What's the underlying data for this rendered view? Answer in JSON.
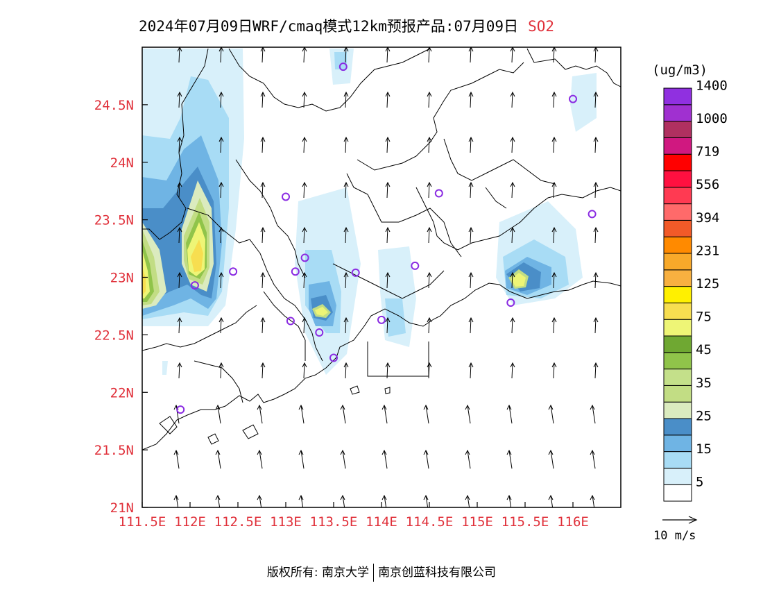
{
  "title": {
    "main": "2024年07月09日WRF/cmaq模式12km预报产品:07月09日",
    "pollutant": "SO2"
  },
  "colorbar": {
    "unit": "(ug/m3)",
    "levels": [
      {
        "color": "#ffffff",
        "label": "5"
      },
      {
        "color": "#d8f0fa",
        "label": ""
      },
      {
        "color": "#a8dcf5",
        "label": "15"
      },
      {
        "color": "#6fb4e4",
        "label": ""
      },
      {
        "color": "#4a8ec8",
        "label": "25"
      },
      {
        "color": "#dbebbf",
        "label": ""
      },
      {
        "color": "#c2dd84",
        "label": "35"
      },
      {
        "color": "#c4e08a",
        "label": ""
      },
      {
        "color": "#90c44a",
        "label": "45"
      },
      {
        "color": "#6fa832",
        "label": ""
      },
      {
        "color": "#eef576",
        "label": "75"
      },
      {
        "color": "#f7de50",
        "label": ""
      },
      {
        "color": "#fff000",
        "label": "125"
      },
      {
        "color": "#f8b040",
        "label": ""
      },
      {
        "color": "#f8a92a",
        "label": "231"
      },
      {
        "color": "#ff8a00",
        "label": ""
      },
      {
        "color": "#f25a28",
        "label": "394"
      },
      {
        "color": "#ff6a6a",
        "label": ""
      },
      {
        "color": "#ff3a52",
        "label": "556"
      },
      {
        "color": "#ff1040",
        "label": ""
      },
      {
        "color": "#ff0000",
        "label": "719"
      },
      {
        "color": "#d01880",
        "label": ""
      },
      {
        "color": "#b03060",
        "label": "1000"
      },
      {
        "color": "#a030d0",
        "label": ""
      },
      {
        "color": "#9030e0",
        "label": "1400"
      }
    ]
  },
  "map": {
    "lon_range": [
      111.5,
      116.5
    ],
    "lat_range": [
      21.0,
      25.0
    ],
    "xticks": [
      111.5,
      112,
      112.5,
      113,
      113.5,
      114,
      114.5,
      115,
      115.5,
      116
    ],
    "xtick_labels": [
      "111.5E",
      "112E",
      "112.5E",
      "113E",
      "113.5E",
      "114E",
      "114.5E",
      "115E",
      "115.5E",
      "116E"
    ],
    "yticks": [
      21,
      21.5,
      22,
      22.5,
      23,
      23.5,
      24,
      24.5
    ],
    "ytick_labels": [
      "21N",
      "21.5N",
      "22N",
      "22.5N",
      "23N",
      "23.5N",
      "24N",
      "24.5N"
    ],
    "label_color": "#e0303a",
    "stations": [
      {
        "lon": 113.6,
        "lat": 24.83
      },
      {
        "lon": 116.0,
        "lat": 24.55
      },
      {
        "lon": 113.0,
        "lat": 23.7
      },
      {
        "lon": 114.6,
        "lat": 23.73
      },
      {
        "lon": 116.2,
        "lat": 23.55
      },
      {
        "lon": 113.2,
        "lat": 23.17
      },
      {
        "lon": 113.1,
        "lat": 23.05
      },
      {
        "lon": 112.45,
        "lat": 23.05
      },
      {
        "lon": 113.73,
        "lat": 23.04
      },
      {
        "lon": 114.35,
        "lat": 23.1
      },
      {
        "lon": 112.05,
        "lat": 22.93
      },
      {
        "lon": 115.35,
        "lat": 22.78
      },
      {
        "lon": 113.05,
        "lat": 22.62
      },
      {
        "lon": 113.35,
        "lat": 22.52
      },
      {
        "lon": 114.0,
        "lat": 22.63
      },
      {
        "lon": 113.5,
        "lat": 22.3
      },
      {
        "lon": 111.9,
        "lat": 21.85
      }
    ]
  },
  "wind_legend": {
    "label": "10 m/s"
  },
  "footer": {
    "left": "版权所有: 南京大学",
    "right": "南京创蓝科技有限公司"
  }
}
